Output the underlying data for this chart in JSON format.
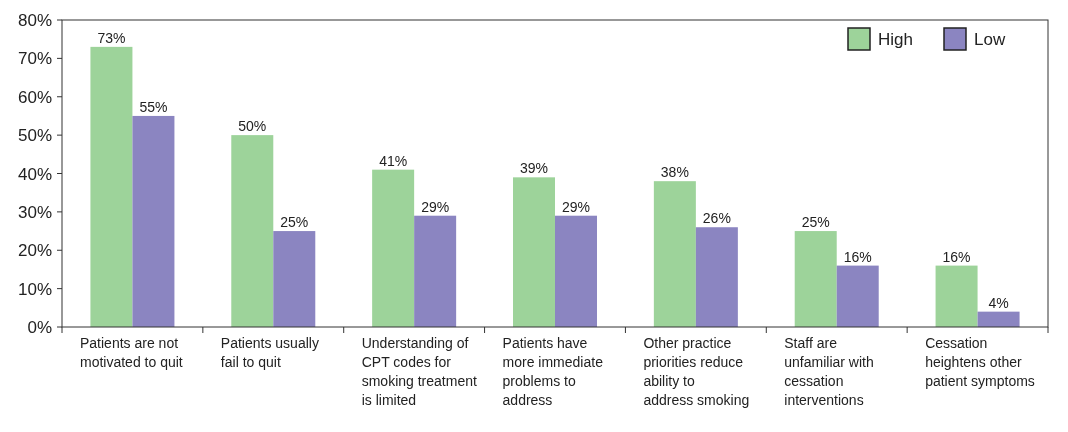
{
  "chart_data": {
    "type": "bar",
    "categories": [
      "Patients are not motivated to quit",
      "Patients usually fail to quit",
      "Understanding of CPT codes for smoking treatment is limited",
      "Patients have more immediate problems to address",
      "Other practice priorities reduce ability to address smoking",
      "Staff are unfamiliar with cessation interventions",
      "Cessation heightens other patient symptoms"
    ],
    "series": [
      {
        "name": "High",
        "color": "#9dd39a",
        "values": [
          73,
          50,
          41,
          39,
          38,
          25,
          16
        ],
        "value_labels": [
          "73%",
          "50%",
          "41%",
          "39%",
          "38%",
          "25%",
          "16%"
        ]
      },
      {
        "name": "Low",
        "color": "#8b85c1",
        "values": [
          55,
          25,
          29,
          29,
          26,
          16,
          4
        ],
        "value_labels": [
          "55%",
          "25%",
          "29%",
          "29%",
          "26%",
          "16%",
          "4%"
        ]
      }
    ],
    "ylim": [
      0,
      80
    ],
    "yticks": [
      {
        "value": 0,
        "label": "0%"
      },
      {
        "value": 10,
        "label": "10%"
      },
      {
        "value": 20,
        "label": "20%"
      },
      {
        "value": 30,
        "label": "30%"
      },
      {
        "value": 40,
        "label": "40%"
      },
      {
        "value": 50,
        "label": "50%"
      },
      {
        "value": 60,
        "label": "60%"
      },
      {
        "value": 70,
        "label": "70%"
      },
      {
        "value": 80,
        "label": "80%"
      }
    ],
    "legend": "top right",
    "grid": false
  }
}
